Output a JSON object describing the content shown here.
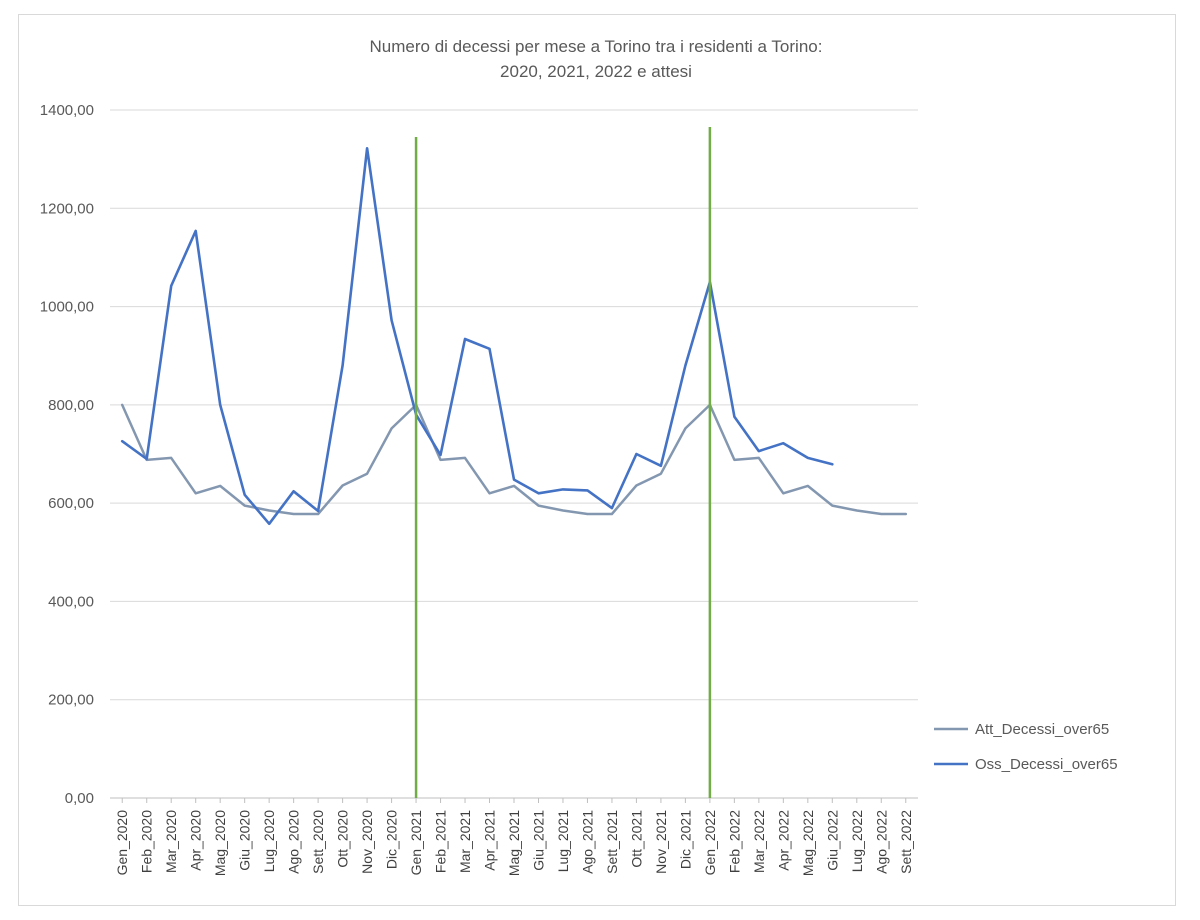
{
  "chart_data": {
    "type": "line",
    "title_line1": "Numero di decessi per mese a Torino tra i residenti a Torino:",
    "title_line2": "2020, 2021, 2022 e attesi",
    "ylim": [
      0,
      1400
    ],
    "yticks": [
      "0,00",
      "200,00",
      "400,00",
      "600,00",
      "800,00",
      "1000,00",
      "1200,00",
      "1400,00"
    ],
    "ytick_values": [
      0,
      200,
      400,
      600,
      800,
      1000,
      1200,
      1400
    ],
    "categories": [
      "Gen_2020",
      "Feb_2020",
      "Mar_2020",
      "Apr_2020",
      "Mag_2020",
      "Giu_2020",
      "Lug_2020",
      "Ago_2020",
      "Sett_2020",
      "Ott_2020",
      "Nov_2020",
      "Dic_2020",
      "Gen_2021",
      "Feb_2021",
      "Mar_2021",
      "Apr_2021",
      "Mag_2021",
      "Giu_2021",
      "Lug_2021",
      "Ago_2021",
      "Sett_2021",
      "Ott_2021",
      "Nov_2021",
      "Dic_2021",
      "Gen_2022",
      "Feb_2022",
      "Mar_2022",
      "Apr_2022",
      "Mag_2022",
      "Giu_2022",
      "Lug_2022",
      "Ago_2022",
      "Sett_2022"
    ],
    "series": [
      {
        "name": "Att_Decessi_over65",
        "color": "#8497b0",
        "values": [
          800,
          688,
          692,
          620,
          635,
          595,
          585,
          578,
          578,
          636,
          660,
          752,
          800,
          688,
          692,
          620,
          635,
          595,
          585,
          578,
          578,
          636,
          660,
          752,
          800,
          688,
          692,
          620,
          635,
          595,
          585,
          578,
          578
        ]
      },
      {
        "name": "Oss_Decessi_over65",
        "color": "#4472c4",
        "values": [
          726,
          690,
          1042,
          1154,
          800,
          617,
          558,
          624,
          584,
          880,
          1322,
          972,
          780,
          698,
          934,
          914,
          648,
          620,
          628,
          626,
          590,
          700,
          676,
          880,
          1050,
          776,
          706,
          722,
          692,
          679,
          null,
          null,
          null
        ]
      }
    ],
    "vertical_markers": [
      {
        "category": "Gen_2021",
        "color": "#70ad47"
      },
      {
        "category": "Gen_2022",
        "color": "#70ad47"
      }
    ],
    "legend_position": "right",
    "grid": true
  }
}
